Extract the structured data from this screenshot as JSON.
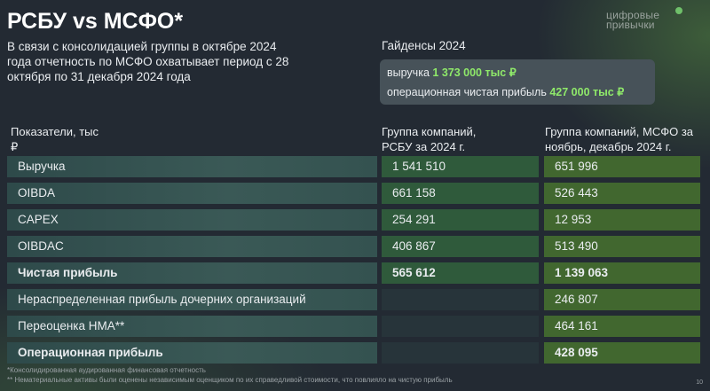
{
  "title": "РСБУ vs МСФО*",
  "logo": [
    "цифровые",
    "привычки"
  ],
  "intro": "В связи с консолидацией группы в октябре 2024 года отчетность по МСФО охватывает период с 28 октября по 31 декабря 2024 года",
  "guidance": {
    "title": "Гайденсы 2024",
    "items": [
      {
        "label": "выручка",
        "value": "1 373 000 тыс ₽"
      },
      {
        "label": "операционная чистая прибыль",
        "value": "427 000 тыс ₽"
      }
    ]
  },
  "table": {
    "headers": [
      "Показатели, тыс ₽",
      "Группа компаний, РСБУ за 2024 г.",
      "Группа компаний, МСФО за ноябрь, декабрь 2024 г."
    ],
    "rows": [
      {
        "label": "Выручка",
        "rsbu": "1 541 510",
        "msfo": "651 996"
      },
      {
        "label": "OIBDA",
        "rsbu": "661 158",
        "msfo": "526 443"
      },
      {
        "label": "CAPEX",
        "rsbu": "254 291",
        "msfo": "12 953"
      },
      {
        "label": "OIBDAC",
        "rsbu": "406 867",
        "msfo": "513 490"
      },
      {
        "label": "Чистая прибыль",
        "rsbu": "565 612",
        "msfo": "1 139 063",
        "bold": true
      },
      {
        "label": "Нераспределенная прибыль дочерних организаций",
        "rsbu": "",
        "msfo": "246 807"
      },
      {
        "label": "Переоценка НМА**",
        "rsbu": "",
        "msfo": "464 161"
      },
      {
        "label": "Операционная прибыль",
        "rsbu": "",
        "msfo": "428 095",
        "bold": true
      }
    ]
  },
  "footnotes": [
    "*Консолидированная аудированная финансовая отчетность",
    "** Нематериальные активы были оценены независимым оценщиком по их справедливой стоимости, что повлияло на чистую прибыль"
  ],
  "page_number": "10",
  "colors": {
    "accent": "#8fe96a",
    "background": "#232a33"
  }
}
